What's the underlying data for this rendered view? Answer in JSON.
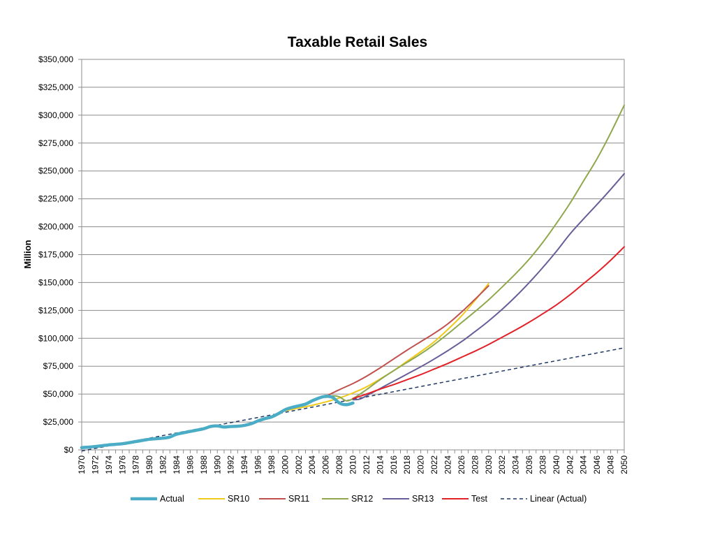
{
  "chart_data": {
    "type": "line",
    "title": "Taxable Retail Sales",
    "ylabel": "Million",
    "xlabel": "",
    "xlim": [
      1970,
      2050
    ],
    "ylim": [
      0,
      350000
    ],
    "grid": true,
    "legend_position": "bottom",
    "y_ticks": [
      "$0",
      "$25,000",
      "$50,000",
      "$75,000",
      "$100,000",
      "$125,000",
      "$150,000",
      "$175,000",
      "$200,000",
      "$225,000",
      "$250,000",
      "$275,000",
      "$300,000",
      "$325,000",
      "$350,000"
    ],
    "x_ticks": [
      "1970",
      "1972",
      "1974",
      "1976",
      "1978",
      "1980",
      "1982",
      "1984",
      "1986",
      "1988",
      "1990",
      "1992",
      "1994",
      "1996",
      "1998",
      "2000",
      "2002",
      "2004",
      "2006",
      "2008",
      "2010",
      "2012",
      "2014",
      "2016",
      "2018",
      "2020",
      "2022",
      "2024",
      "2026",
      "2028",
      "2030",
      "2032",
      "2034",
      "2036",
      "2038",
      "2040",
      "2042",
      "2044",
      "2046",
      "2048",
      "2050"
    ],
    "series": [
      {
        "name": "Actual",
        "color": "#4BACC6",
        "style": "thick",
        "x": [
          1970,
          1972,
          1974,
          1976,
          1978,
          1980,
          1982,
          1983,
          1984,
          1986,
          1988,
          1989,
          1990,
          1991,
          1992,
          1993,
          1994,
          1995,
          1996,
          1997,
          1998,
          1999,
          2000,
          2001,
          2002,
          2003,
          2004,
          2005,
          2006,
          2007,
          2008,
          2009,
          2010
        ],
        "y": [
          2000,
          3000,
          4500,
          5500,
          7500,
          9500,
          10500,
          11500,
          14000,
          16500,
          19000,
          21000,
          21500,
          20500,
          21000,
          21200,
          22000,
          23500,
          26000,
          28000,
          29500,
          32500,
          36000,
          38000,
          39500,
          41000,
          44000,
          46500,
          48000,
          47000,
          42000,
          40500,
          42000
        ]
      },
      {
        "name": "SR10",
        "color": "#F0CA1A",
        "x": [
          2000,
          2002,
          2004,
          2006,
          2008,
          2010,
          2012,
          2014,
          2016,
          2018,
          2020,
          2022,
          2024,
          2026,
          2028,
          2030
        ],
        "y": [
          35000,
          37500,
          40000,
          43000,
          46500,
          51000,
          56500,
          63500,
          71000,
          79500,
          88000,
          97000,
          108000,
          120000,
          134000,
          149000
        ]
      },
      {
        "name": "SR11",
        "color": "#C0504D",
        "x": [
          2006,
          2008,
          2010,
          2012,
          2014,
          2016,
          2018,
          2020,
          2022,
          2024,
          2026,
          2028,
          2030
        ],
        "y": [
          48000,
          54000,
          59500,
          66000,
          73500,
          81500,
          89500,
          97000,
          104500,
          113000,
          123500,
          135000,
          147000
        ]
      },
      {
        "name": "SR12",
        "color": "#8EA84B",
        "x": [
          2006,
          2007,
          2008,
          2009,
          2010,
          2012,
          2014,
          2016,
          2018,
          2020,
          2022,
          2024,
          2026,
          2028,
          2030,
          2032,
          2034,
          2036,
          2038,
          2040,
          2042,
          2044,
          2046,
          2048,
          2050
        ],
        "y": [
          47000,
          48500,
          47500,
          44000,
          46000,
          54000,
          63000,
          71000,
          78500,
          86000,
          94500,
          104000,
          114000,
          124000,
          134500,
          146000,
          158000,
          171000,
          186000,
          203000,
          221000,
          241000,
          261000,
          284000,
          309000
        ]
      },
      {
        "name": "SR13",
        "color": "#675E99",
        "x": [
          2010,
          2011,
          2012,
          2014,
          2016,
          2018,
          2020,
          2022,
          2024,
          2026,
          2028,
          2030,
          2032,
          2034,
          2036,
          2038,
          2040,
          2042,
          2044,
          2046,
          2048,
          2050
        ],
        "y": [
          45000,
          45500,
          48500,
          55000,
          61500,
          68000,
          74500,
          81500,
          89000,
          97000,
          106000,
          115500,
          126000,
          137500,
          150000,
          163500,
          178000,
          193500,
          207000,
          220000,
          233500,
          247500
        ]
      },
      {
        "name": "Test",
        "color": "#E32027",
        "x": [
          2010,
          2012,
          2014,
          2016,
          2018,
          2020,
          2022,
          2024,
          2026,
          2028,
          2030,
          2032,
          2034,
          2036,
          2038,
          2040,
          2042,
          2044,
          2046,
          2048,
          2050
        ],
        "y": [
          46000,
          50000,
          54500,
          58500,
          63000,
          67500,
          72500,
          77500,
          83000,
          88500,
          94500,
          101000,
          107500,
          114500,
          122000,
          130000,
          139000,
          149000,
          159000,
          170000,
          182000
        ]
      },
      {
        "name": "Linear (Actual)",
        "color": "#1F3864",
        "style": "dashed",
        "x": [
          1970,
          2050
        ],
        "y": [
          -1000,
          91500
        ]
      }
    ]
  }
}
